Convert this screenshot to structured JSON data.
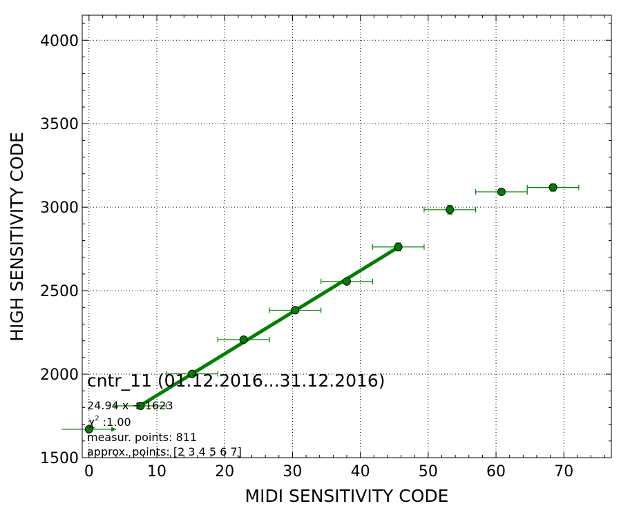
{
  "chart_data": {
    "type": "scatter",
    "xlabel": "MIDI SENSITIVITY CODE",
    "ylabel": "HIGH SENSITIVITY CODE",
    "xlim": [
      -1,
      77
    ],
    "ylim": [
      1500,
      4150
    ],
    "x_ticks": [
      0,
      10,
      20,
      30,
      40,
      50,
      60,
      70
    ],
    "y_ticks": [
      1500,
      2000,
      2500,
      3000,
      3500,
      4000
    ],
    "grid": true,
    "color": "#007f00",
    "points": [
      {
        "x": 0.0,
        "y": 1670,
        "xerr": 4.0,
        "yerr": 10,
        "arrow": true
      },
      {
        "x": 7.6,
        "y": 1810,
        "xerr": 3.8,
        "yerr": 10
      },
      {
        "x": 15.2,
        "y": 2002,
        "xerr": 3.8,
        "yerr": 12
      },
      {
        "x": 22.8,
        "y": 2207,
        "xerr": 3.8,
        "yerr": 12
      },
      {
        "x": 30.4,
        "y": 2383,
        "xerr": 3.8,
        "yerr": 14
      },
      {
        "x": 38.0,
        "y": 2555,
        "xerr": 3.8,
        "yerr": 15
      },
      {
        "x": 45.6,
        "y": 2762,
        "xerr": 3.8,
        "yerr": 24
      },
      {
        "x": 53.2,
        "y": 2985,
        "xerr": 3.8,
        "yerr": 26
      },
      {
        "x": 60.8,
        "y": 3092,
        "xerr": 3.8,
        "yerr": 12
      },
      {
        "x": 68.4,
        "y": 3118,
        "xerr": 3.8,
        "yerr": 22
      }
    ],
    "fit_line": {
      "x_start": 7.6,
      "x_end": 45.6,
      "slope": 24.94,
      "intercept": 1623
    },
    "annotations": {
      "title": "cntr_11 (01.12.2016...31.12.2016)",
      "equation": "24.94 x + 1623",
      "chi_symbol": "χ",
      "chi_sup": "2",
      "chi_value": " :1.00",
      "measur_points": "measur. points: 811",
      "approx_points": "approx. points: [2 3 4 5 6 7]"
    }
  }
}
